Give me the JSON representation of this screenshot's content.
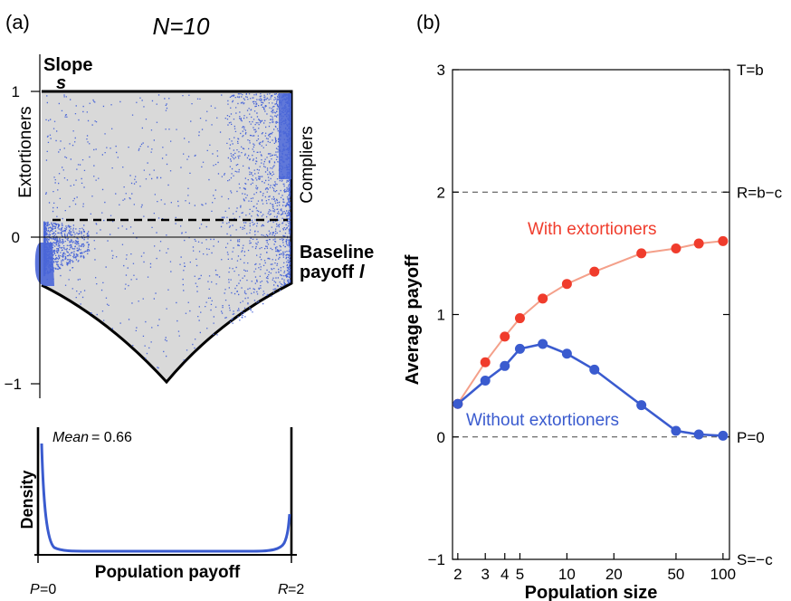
{
  "panel_a": {
    "label": "(a)",
    "title": "N=10",
    "slope_label": "Slope",
    "slope_symbol": "s",
    "extortioners_label": "Extortioners",
    "compliers_label": "Compliers",
    "baseline_label_1": "Baseline",
    "baseline_label_2": "payoff",
    "baseline_symbol": "l",
    "yticks": [
      "1",
      "0",
      "−1"
    ],
    "density": {
      "ylabel": "Density",
      "xlabel": "Population payoff",
      "mean_label": "Mean",
      "mean_value": "= 0.66",
      "left_tick_var": "P",
      "left_tick_val": "=0",
      "right_tick_var": "R",
      "right_tick_val": "=2"
    },
    "colors": {
      "points": "#4a66d8",
      "region": "#d9d9d9",
      "curve": "#3a5bcf"
    }
  },
  "chart_data": {
    "type": "line",
    "panel": "(b)",
    "xlabel": "Population size",
    "ylabel": "Average payoff",
    "xscale": "log",
    "xticks": [
      2,
      3,
      4,
      5,
      10,
      20,
      50,
      100
    ],
    "yticks": [
      -1,
      0,
      1,
      2,
      3
    ],
    "ylim": [
      -1,
      3
    ],
    "xlim": [
      1.85,
      110
    ],
    "reference_lines": [
      {
        "y": 2,
        "label": "R=b−c"
      },
      {
        "y": 0,
        "label": "P=0"
      }
    ],
    "right_labels": [
      {
        "y": 3,
        "label": "T=b"
      },
      {
        "y": 2,
        "label": "R=b−c"
      },
      {
        "y": 0,
        "label": "P=0"
      },
      {
        "y": -1,
        "label": "S=−c"
      }
    ],
    "series": [
      {
        "name": "With extortioners",
        "color": "#f03c2c",
        "line_color": "#f4a08a",
        "x": [
          2,
          3,
          4,
          5,
          7,
          10,
          15,
          30,
          50,
          70,
          100
        ],
        "y": [
          0.27,
          0.61,
          0.82,
          0.97,
          1.13,
          1.25,
          1.35,
          1.5,
          1.54,
          1.58,
          1.6
        ]
      },
      {
        "name": "Without extortioners",
        "color": "#3a5bcf",
        "line_color": "#3a5bcf",
        "x": [
          2,
          3,
          4,
          5,
          7,
          10,
          15,
          30,
          50,
          70,
          100
        ],
        "y": [
          0.27,
          0.46,
          0.58,
          0.72,
          0.76,
          0.68,
          0.55,
          0.26,
          0.05,
          0.02,
          0.01
        ]
      }
    ]
  }
}
